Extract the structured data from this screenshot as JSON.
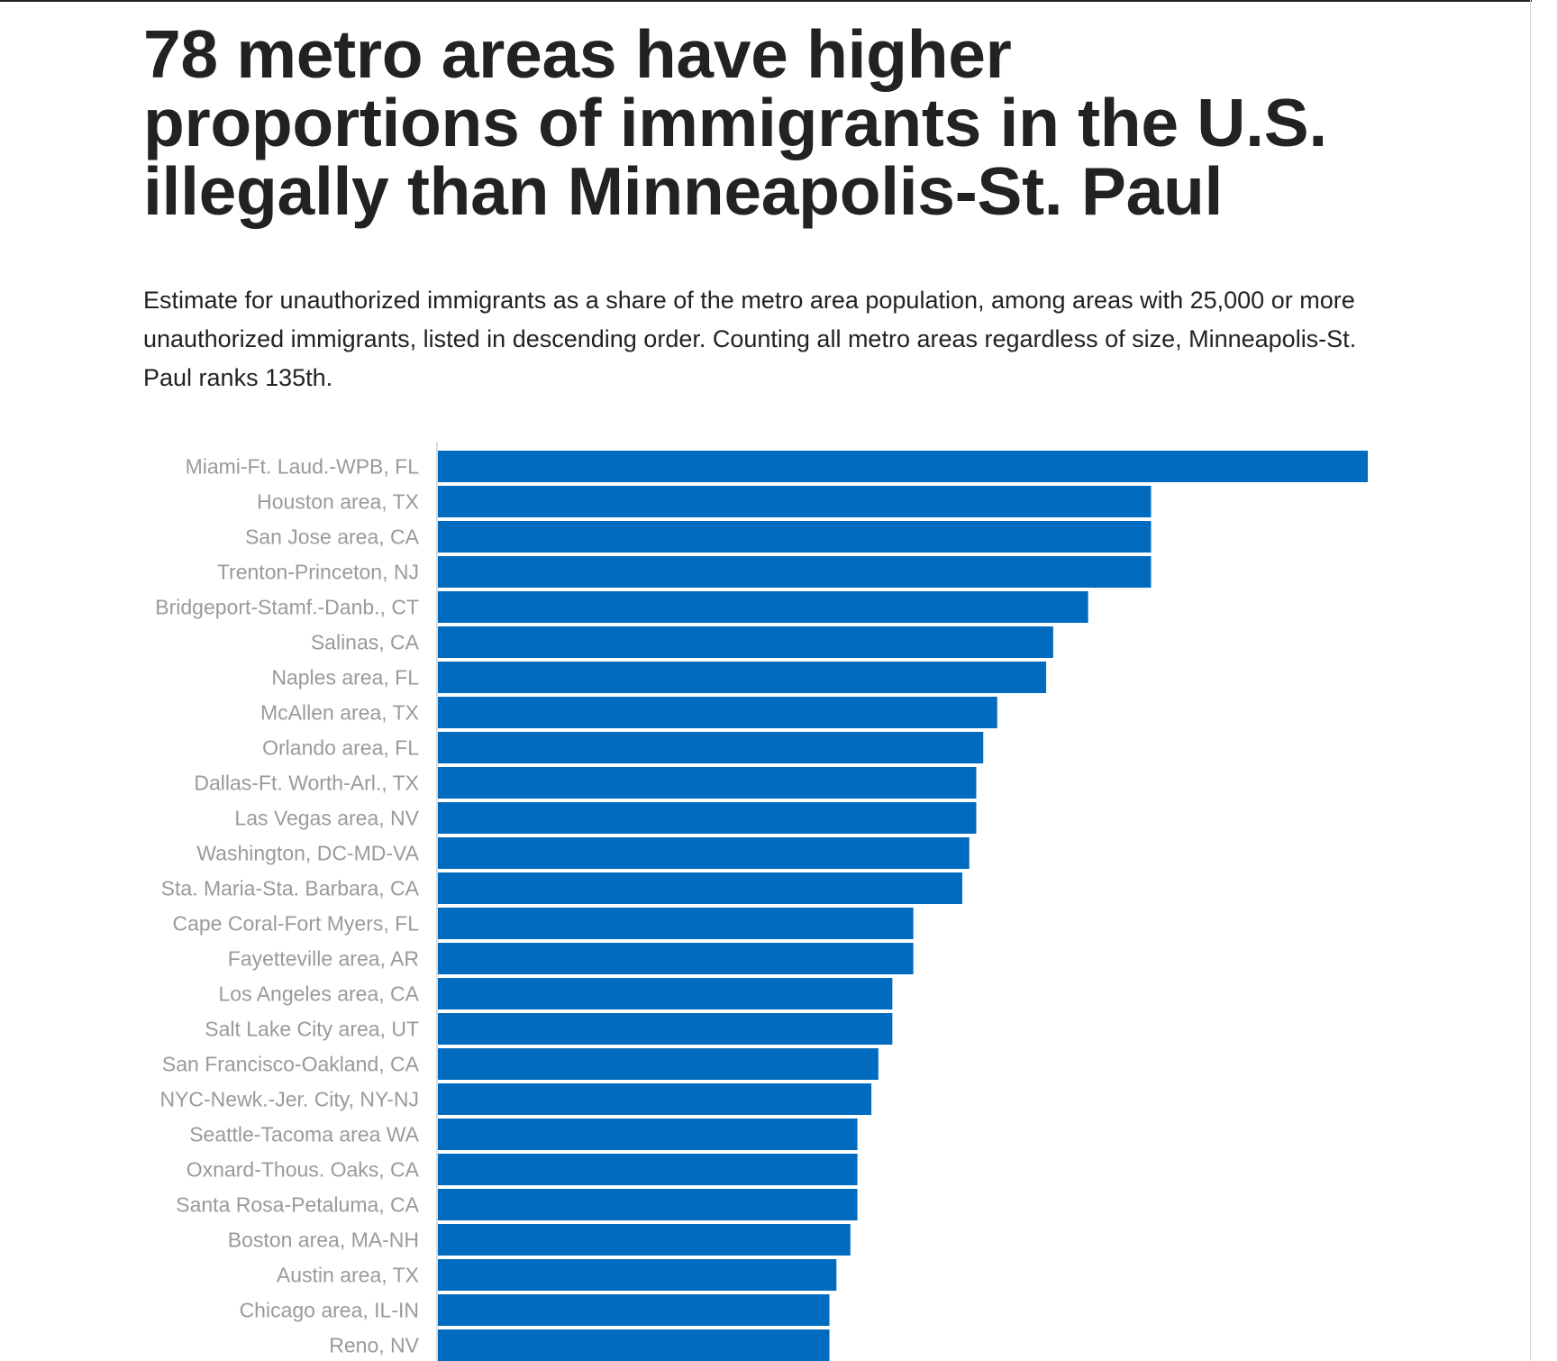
{
  "title": "78 metro areas have higher proportions of immigrants in the U.S. illegally than Minneapolis-St. Paul",
  "subtitle": "Estimate for unauthorized immigrants as a share of the metro area population, among areas with 25,000 or more unauthorized immigrants, listed in descending order. Counting all metro areas regardless of size, Minneapolis-St. Paul ranks 135th.",
  "colors": {
    "bar": "#006bbf",
    "label": "#9a9a9a",
    "text": "#222222"
  },
  "chart_data": {
    "type": "bar",
    "orientation": "horizontal",
    "title": "78 metro areas have higher proportions of immigrants in the U.S. illegally than Minneapolis-St. Paul",
    "xlabel": "",
    "ylabel": "",
    "xlim": [
      0,
      13.3
    ],
    "grid": false,
    "legend": "none",
    "categories": [
      "Miami-Ft. Laud.-WPB, FL",
      "Houston area, TX",
      "San Jose area, CA",
      "Trenton-Princeton, NJ",
      "Bridgeport-Stamf.-Danb., CT",
      "Salinas, CA",
      "Naples area, FL",
      "McAllen area, TX",
      "Orlando area, FL",
      "Dallas-Ft. Worth-Arl., TX",
      "Las Vegas area, NV",
      "Washington, DC-MD-VA",
      "Sta. Maria-Sta. Barbara, CA",
      "Cape Coral-Fort Myers, FL",
      "Fayetteville area, AR",
      "Los Angeles area, CA",
      "Salt Lake City area, UT",
      "San Francisco-Oakland, CA",
      "NYC-Newk.-Jer. City, NY-NJ",
      "Seattle-Tacoma area WA",
      "Oxnard-Thous. Oaks, CA",
      "Santa Rosa-Petaluma, CA",
      "Boston area, MA-NH",
      "Austin area, TX",
      "Chicago area, IL-IN",
      "Reno, NV"
    ],
    "values": [
      13.3,
      10.2,
      10.2,
      10.2,
      9.3,
      8.8,
      8.7,
      8.0,
      7.8,
      7.7,
      7.7,
      7.6,
      7.5,
      6.8,
      6.8,
      6.5,
      6.5,
      6.3,
      6.2,
      6.0,
      6.0,
      6.0,
      5.9,
      5.7,
      5.6,
      5.6
    ]
  }
}
